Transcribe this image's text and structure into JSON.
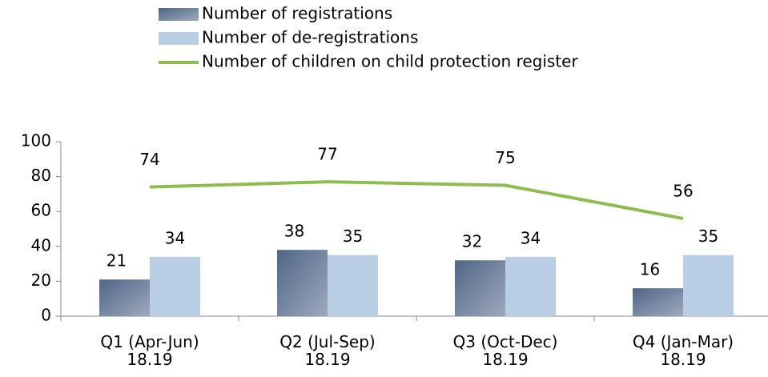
{
  "chart_data": {
    "type": "bar-line",
    "categories": [
      "Q1 (Apr-Jun)\n18.19",
      "Q2 (Jul-Sep)\n18.19",
      "Q3 (Oct-Dec)\n18.19",
      "Q4 (Jan-Mar)\n18.19"
    ],
    "series": [
      {
        "name": "Number of registrations",
        "type": "bar",
        "color": "#4f6587",
        "values": [
          21,
          38,
          32,
          16
        ]
      },
      {
        "name": "Number of de-registrations",
        "type": "bar",
        "color": "#b9cde5",
        "values": [
          34,
          35,
          34,
          35
        ]
      },
      {
        "name": "Number of children on child protection register",
        "type": "line",
        "color": "#8fbc4f",
        "values": [
          74,
          77,
          75,
          56
        ]
      }
    ],
    "ylim": [
      0,
      100
    ],
    "yticks": [
      0,
      20,
      40,
      60,
      80,
      100
    ],
    "grid": false
  }
}
